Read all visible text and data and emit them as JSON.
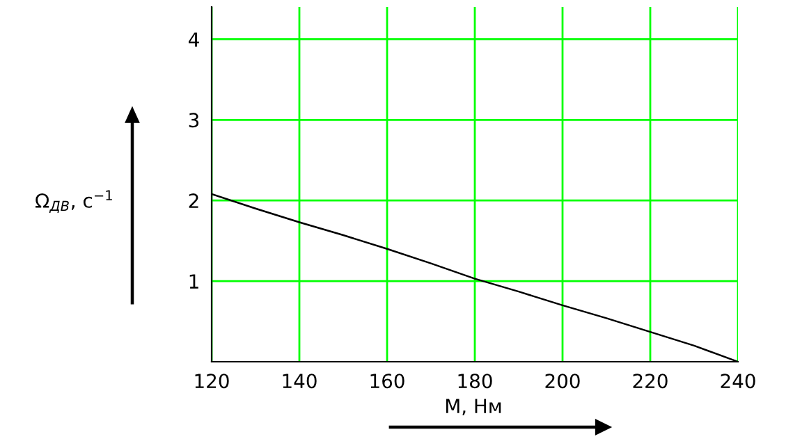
{
  "chart_data": {
    "type": "line",
    "xlabel": "М, Нм",
    "ylabel": "Ω$_{ДВ}$, с$^{−1}$",
    "x": [
      120,
      130,
      140,
      150,
      160,
      170,
      180,
      190,
      200,
      210,
      220,
      230,
      240
    ],
    "series": [
      {
        "color": "#000000",
        "values": [
          2.08,
          1.9,
          1.73,
          1.57,
          1.4,
          1.22,
          1.03,
          0.87,
          0.7,
          0.54,
          0.37,
          0.2,
          0
        ]
      }
    ],
    "xlim": [
      120,
      240
    ],
    "ylim": [
      0,
      4.4
    ],
    "xticks": [
      120,
      140,
      160,
      180,
      200,
      220,
      240
    ],
    "yticks": [
      1,
      2,
      3,
      4
    ],
    "grid": true,
    "marker": "none",
    "line_style": "solid"
  }
}
